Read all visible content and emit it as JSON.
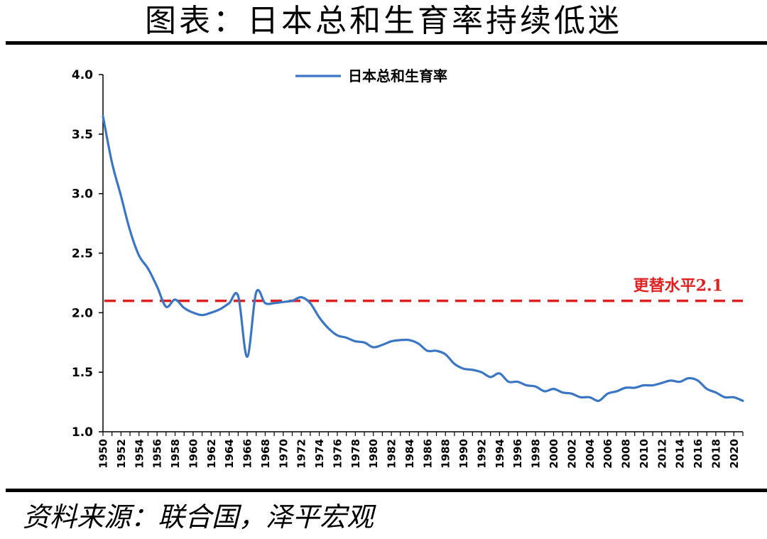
{
  "title": "图表：日本总和生育率持续低迷",
  "source": "资料来源：联合国，泽平宏观",
  "colors": {
    "series": "#3a76c4",
    "reference": "#e02020",
    "axis": "#000000"
  },
  "chart_data": {
    "type": "line",
    "xlim": [
      1950,
      2021
    ],
    "ylim": [
      1.0,
      4.0
    ],
    "y_ticks": [
      "1.0",
      "1.5",
      "2.0",
      "2.5",
      "3.0",
      "3.5",
      "4.0"
    ],
    "x_tick_labels": [
      "1950",
      "1952",
      "1954",
      "1956",
      "1958",
      "1960",
      "1962",
      "1964",
      "1966",
      "1968",
      "1970",
      "1972",
      "1974",
      "1976",
      "1978",
      "1980",
      "1982",
      "1984",
      "1986",
      "1988",
      "1990",
      "1992",
      "1994",
      "1996",
      "1998",
      "2000",
      "2002",
      "2004",
      "2006",
      "2008",
      "2010",
      "2012",
      "2014",
      "2016",
      "2018",
      "2020"
    ],
    "grid": false,
    "legend_position": "top-center",
    "series": [
      {
        "name": "日本总和生育率",
        "x": [
          1950,
          1951,
          1952,
          1953,
          1954,
          1955,
          1956,
          1957,
          1958,
          1959,
          1960,
          1961,
          1962,
          1963,
          1964,
          1965,
          1966,
          1967,
          1968,
          1969,
          1970,
          1971,
          1972,
          1973,
          1974,
          1975,
          1976,
          1977,
          1978,
          1979,
          1980,
          1981,
          1982,
          1983,
          1984,
          1985,
          1986,
          1987,
          1988,
          1989,
          1990,
          1991,
          1992,
          1993,
          1994,
          1995,
          1996,
          1997,
          1998,
          1999,
          2000,
          2001,
          2002,
          2003,
          2004,
          2005,
          2006,
          2007,
          2008,
          2009,
          2010,
          2011,
          2012,
          2013,
          2014,
          2015,
          2016,
          2017,
          2018,
          2019,
          2020,
          2021
        ],
        "values": [
          3.65,
          3.26,
          2.98,
          2.69,
          2.48,
          2.37,
          2.22,
          2.05,
          2.11,
          2.04,
          2.0,
          1.98,
          2.0,
          2.03,
          2.08,
          2.14,
          1.63,
          2.17,
          2.08,
          2.08,
          2.09,
          2.1,
          2.13,
          2.08,
          1.96,
          1.87,
          1.81,
          1.79,
          1.76,
          1.75,
          1.71,
          1.73,
          1.76,
          1.77,
          1.77,
          1.74,
          1.68,
          1.68,
          1.65,
          1.57,
          1.53,
          1.52,
          1.5,
          1.46,
          1.49,
          1.42,
          1.42,
          1.39,
          1.38,
          1.34,
          1.36,
          1.33,
          1.32,
          1.29,
          1.29,
          1.26,
          1.32,
          1.34,
          1.37,
          1.37,
          1.39,
          1.39,
          1.41,
          1.43,
          1.42,
          1.45,
          1.43,
          1.36,
          1.33,
          1.29,
          1.29,
          1.26
        ]
      }
    ],
    "reference_line": {
      "value": 2.1,
      "label": "更替水平2.1"
    }
  }
}
